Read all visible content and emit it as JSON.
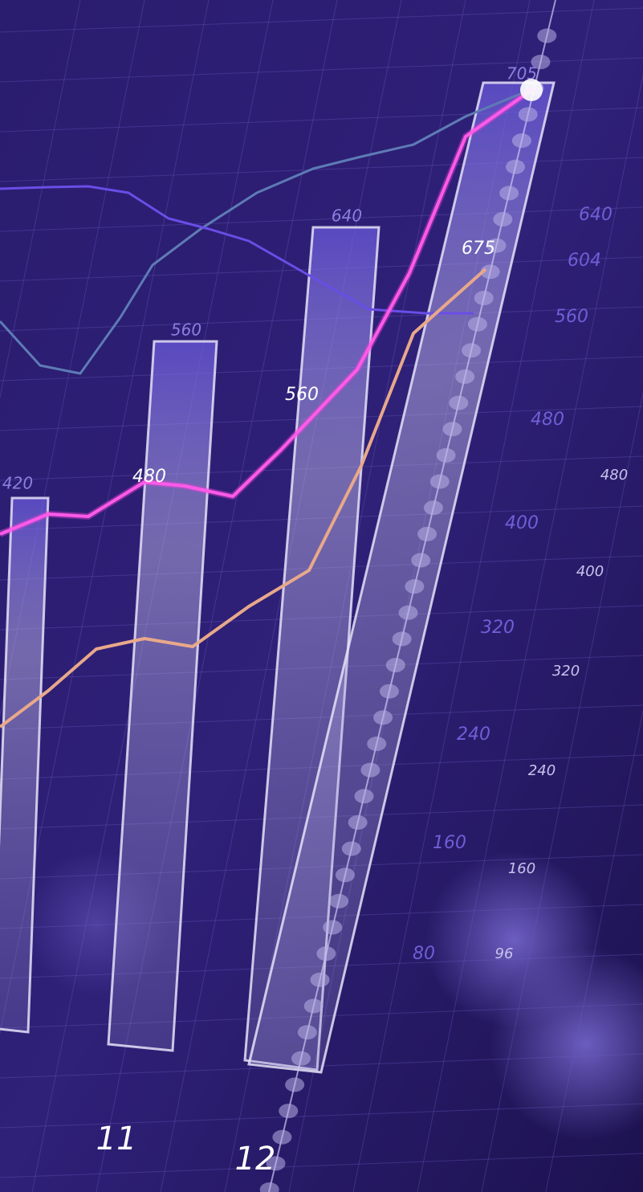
{
  "bar_labels": [
    "420",
    "480",
    "560",
    "640",
    "560",
    "675",
    "705"
  ],
  "axis_labels": [
    "640",
    "604",
    "560",
    "480",
    "400",
    "320",
    "240",
    "160",
    "80"
  ],
  "far_axis_labels": [
    "480",
    "400",
    "320",
    "240",
    "160",
    "96"
  ],
  "category_labels": [
    "11",
    "12"
  ]
}
